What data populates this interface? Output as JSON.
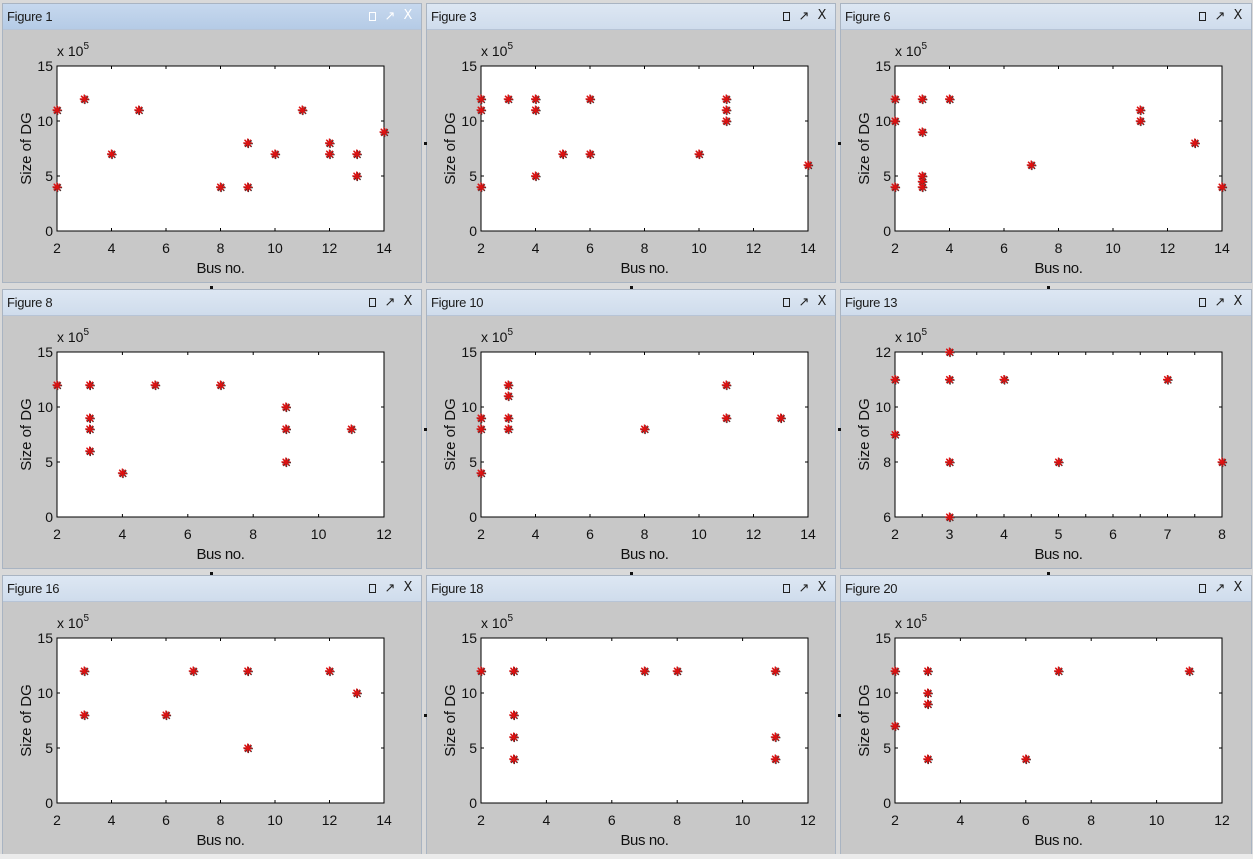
{
  "axis": {
    "xlabel": "Bus no.",
    "ylabel": "Size of DG",
    "multiplier_base": "x 10",
    "multiplier_exp": "5"
  },
  "window_buttons": {
    "maximize": "□",
    "undock": "↗",
    "close": "X"
  },
  "colors": {
    "marker": "#e01010",
    "marker_shadow": "#333333",
    "axes_bg": "#ffffff",
    "figure_bg": "#c8c8c8"
  },
  "figures": [
    {
      "title": "Figure 1",
      "active": true,
      "xlim": [
        2,
        14
      ],
      "xticks": [
        2,
        4,
        6,
        8,
        10,
        12,
        14
      ],
      "ylim": [
        0,
        15
      ],
      "yticks": [
        0,
        5,
        10,
        15
      ],
      "points": [
        [
          2,
          11
        ],
        [
          2,
          4
        ],
        [
          3,
          12
        ],
        [
          4,
          7
        ],
        [
          5,
          11
        ],
        [
          8,
          4
        ],
        [
          9,
          8
        ],
        [
          9,
          4
        ],
        [
          10,
          7
        ],
        [
          11,
          11
        ],
        [
          12,
          8
        ],
        [
          12,
          7
        ],
        [
          13,
          7
        ],
        [
          13,
          5
        ],
        [
          14,
          9
        ]
      ]
    },
    {
      "title": "Figure 3",
      "active": false,
      "xlim": [
        2,
        14
      ],
      "xticks": [
        2,
        4,
        6,
        8,
        10,
        12,
        14
      ],
      "ylim": [
        0,
        15
      ],
      "yticks": [
        0,
        5,
        10,
        15
      ],
      "points": [
        [
          2,
          12
        ],
        [
          2,
          11
        ],
        [
          2,
          4
        ],
        [
          3,
          12
        ],
        [
          4,
          12
        ],
        [
          4,
          11
        ],
        [
          4,
          5
        ],
        [
          5,
          7
        ],
        [
          6,
          12
        ],
        [
          6,
          7
        ],
        [
          10,
          7
        ],
        [
          11,
          12
        ],
        [
          11,
          11
        ],
        [
          11,
          10
        ],
        [
          14,
          6
        ]
      ]
    },
    {
      "title": "Figure 6",
      "active": false,
      "xlim": [
        2,
        14
      ],
      "xticks": [
        2,
        4,
        6,
        8,
        10,
        12,
        14
      ],
      "ylim": [
        0,
        15
      ],
      "yticks": [
        0,
        5,
        10,
        15
      ],
      "points": [
        [
          2,
          12
        ],
        [
          2,
          10
        ],
        [
          2,
          4
        ],
        [
          3,
          12
        ],
        [
          3,
          9
        ],
        [
          3,
          5
        ],
        [
          3,
          4.5
        ],
        [
          3,
          4
        ],
        [
          4,
          12
        ],
        [
          7,
          6
        ],
        [
          11,
          11
        ],
        [
          11,
          10
        ],
        [
          13,
          8
        ],
        [
          14,
          4
        ]
      ]
    },
    {
      "title": "Figure 8",
      "active": false,
      "xlim": [
        2,
        12
      ],
      "xticks": [
        2,
        4,
        6,
        8,
        10,
        12
      ],
      "ylim": [
        0,
        15
      ],
      "yticks": [
        0,
        5,
        10,
        15
      ],
      "points": [
        [
          2,
          12
        ],
        [
          3,
          12
        ],
        [
          3,
          9
        ],
        [
          3,
          8
        ],
        [
          3,
          6
        ],
        [
          4,
          4
        ],
        [
          5,
          12
        ],
        [
          7,
          12
        ],
        [
          9,
          10
        ],
        [
          9,
          8
        ],
        [
          9,
          5
        ],
        [
          11,
          8
        ]
      ]
    },
    {
      "title": "Figure 10",
      "active": false,
      "xlim": [
        2,
        14
      ],
      "xticks": [
        2,
        4,
        6,
        8,
        10,
        12,
        14
      ],
      "ylim": [
        0,
        15
      ],
      "yticks": [
        0,
        5,
        10,
        15
      ],
      "points": [
        [
          2,
          9
        ],
        [
          2,
          8
        ],
        [
          2,
          4
        ],
        [
          3,
          12
        ],
        [
          3,
          11
        ],
        [
          3,
          9
        ],
        [
          3,
          8
        ],
        [
          8,
          8
        ],
        [
          11,
          12
        ],
        [
          11,
          9
        ],
        [
          13,
          9
        ]
      ]
    },
    {
      "title": "Figure 13",
      "active": false,
      "xlim": [
        2,
        8
      ],
      "xticks": [
        2,
        2.5,
        3,
        3.5,
        4,
        4.5,
        5,
        5.5,
        6,
        6.5,
        7,
        7.5,
        8
      ],
      "xtick_labels": [
        "2",
        "",
        "3",
        "",
        "4",
        "",
        "5",
        "",
        "6",
        "",
        "7",
        "",
        "8"
      ],
      "ylim": [
        6,
        12
      ],
      "yticks": [
        6,
        8,
        10,
        12
      ],
      "points": [
        [
          2,
          11
        ],
        [
          2,
          9
        ],
        [
          3,
          12
        ],
        [
          3,
          11
        ],
        [
          3,
          8
        ],
        [
          3,
          6
        ],
        [
          4,
          11
        ],
        [
          5,
          8
        ],
        [
          7,
          11
        ],
        [
          8,
          8
        ]
      ]
    },
    {
      "title": "Figure 16",
      "active": false,
      "xlim": [
        2,
        14
      ],
      "xticks": [
        2,
        4,
        6,
        8,
        10,
        12,
        14
      ],
      "ylim": [
        0,
        15
      ],
      "yticks": [
        0,
        5,
        10,
        15
      ],
      "points": [
        [
          3,
          12
        ],
        [
          3,
          8
        ],
        [
          6,
          8
        ],
        [
          7,
          12
        ],
        [
          9,
          12
        ],
        [
          9,
          5
        ],
        [
          12,
          12
        ],
        [
          13,
          10
        ]
      ]
    },
    {
      "title": "Figure 18",
      "active": false,
      "xlim": [
        2,
        12
      ],
      "xticks": [
        2,
        4,
        6,
        8,
        10,
        12
      ],
      "ylim": [
        0,
        15
      ],
      "yticks": [
        0,
        5,
        10,
        15
      ],
      "points": [
        [
          2,
          12
        ],
        [
          3,
          12
        ],
        [
          3,
          8
        ],
        [
          3,
          6
        ],
        [
          3,
          4
        ],
        [
          7,
          12
        ],
        [
          8,
          12
        ],
        [
          11,
          12
        ],
        [
          11,
          6
        ],
        [
          11,
          4
        ]
      ]
    },
    {
      "title": "Figure 20",
      "active": false,
      "xlim": [
        2,
        12
      ],
      "xticks": [
        2,
        4,
        6,
        8,
        10,
        12
      ],
      "ylim": [
        0,
        15
      ],
      "yticks": [
        0,
        5,
        10,
        15
      ],
      "points": [
        [
          2,
          12
        ],
        [
          2,
          7
        ],
        [
          3,
          12
        ],
        [
          3,
          10
        ],
        [
          3,
          9
        ],
        [
          3,
          4
        ],
        [
          6,
          4
        ],
        [
          7,
          12
        ],
        [
          11,
          12
        ]
      ]
    }
  ]
}
